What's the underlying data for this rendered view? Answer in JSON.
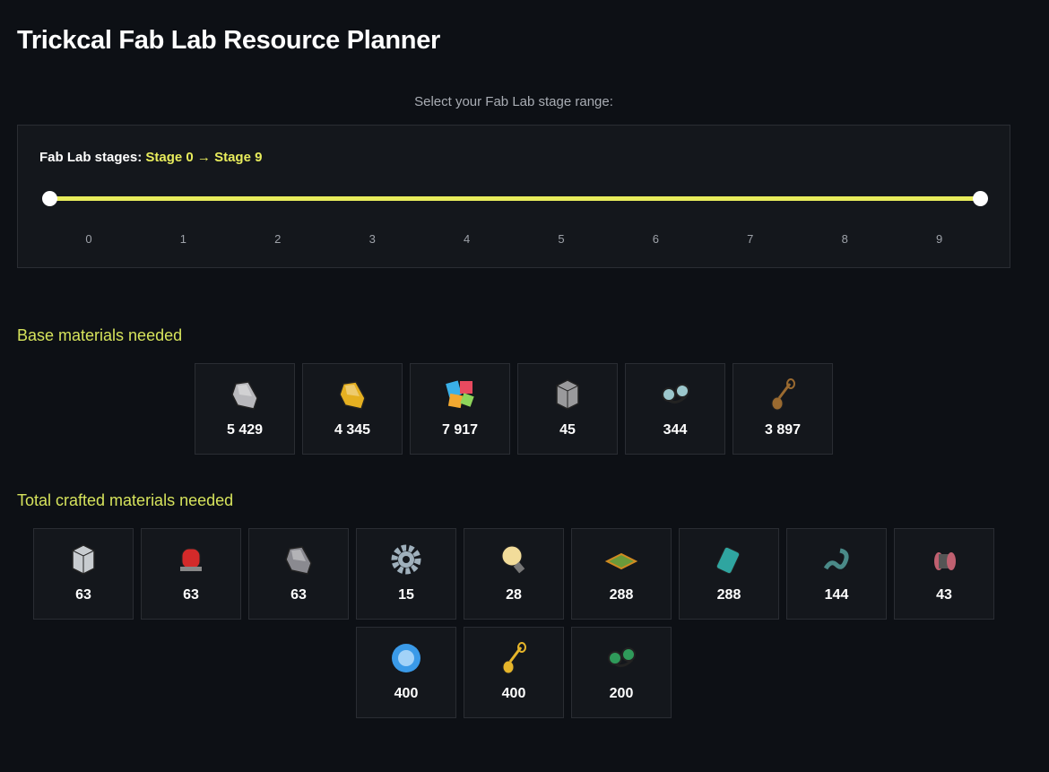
{
  "title": "Trickcal Fab Lab Resource Planner",
  "caption": "Select your Fab Lab stage range:",
  "range": {
    "label": "Fab Lab stages:",
    "from_label": "Stage 0",
    "arrow": "→",
    "to_label": "Stage 9",
    "min": 0,
    "max": 9,
    "from": 0,
    "to": 9,
    "ticks": [
      "0",
      "1",
      "2",
      "3",
      "4",
      "5",
      "6",
      "7",
      "8",
      "9"
    ],
    "accent": "#e8ec5c"
  },
  "base": {
    "heading": "Base materials needed",
    "items": [
      {
        "icon": "silver-ore-icon",
        "color": "#b8b8bc",
        "shape": "rock",
        "count": "5 429"
      },
      {
        "icon": "gold-ore-icon",
        "color": "#e5b021",
        "shape": "rock",
        "count": "4 345"
      },
      {
        "icon": "colored-paper-icon",
        "color": "#e84a5f",
        "shape": "paper",
        "count": "7 917"
      },
      {
        "icon": "stone-block-icon",
        "color": "#9a9a9c",
        "shape": "block",
        "count": "45"
      },
      {
        "icon": "goggles-icon",
        "color": "#9cc7cc",
        "shape": "goggles",
        "count": "344"
      },
      {
        "icon": "spoon-icon",
        "color": "#9a6a30",
        "shape": "spoon",
        "count": "3 897"
      }
    ]
  },
  "crafted": {
    "heading": "Total crafted materials needed",
    "items": [
      {
        "icon": "cube-icon",
        "color": "#c8ccd0",
        "shape": "block",
        "count": "63"
      },
      {
        "icon": "red-siren-icon",
        "color": "#d42a2a",
        "shape": "siren",
        "count": "63"
      },
      {
        "icon": "metal-chunk-icon",
        "color": "#8a8a90",
        "shape": "rock",
        "count": "63"
      },
      {
        "icon": "gear-icon",
        "color": "#9fb0bc",
        "shape": "gear",
        "count": "15"
      },
      {
        "icon": "light-bulb-icon",
        "color": "#f2dc9a",
        "shape": "bulb",
        "count": "28"
      },
      {
        "icon": "circuit-board-icon",
        "color": "#6a9a3a",
        "shape": "board",
        "count": "288"
      },
      {
        "icon": "battery-icon",
        "color": "#2fa5a0",
        "shape": "battery",
        "count": "288"
      },
      {
        "icon": "spring-icon",
        "color": "#4a8a88",
        "shape": "spring",
        "count": "144"
      },
      {
        "icon": "spool-icon",
        "color": "#c06070",
        "shape": "spool",
        "count": "43"
      },
      {
        "icon": "blue-orb-icon",
        "color": "#3a9ae8",
        "shape": "orb",
        "count": "400"
      },
      {
        "icon": "golden-spoon-icon",
        "color": "#e6b52a",
        "shape": "spoon",
        "count": "400"
      },
      {
        "icon": "green-goggles-icon",
        "color": "#2f9a5a",
        "shape": "goggles",
        "count": "200"
      }
    ]
  }
}
